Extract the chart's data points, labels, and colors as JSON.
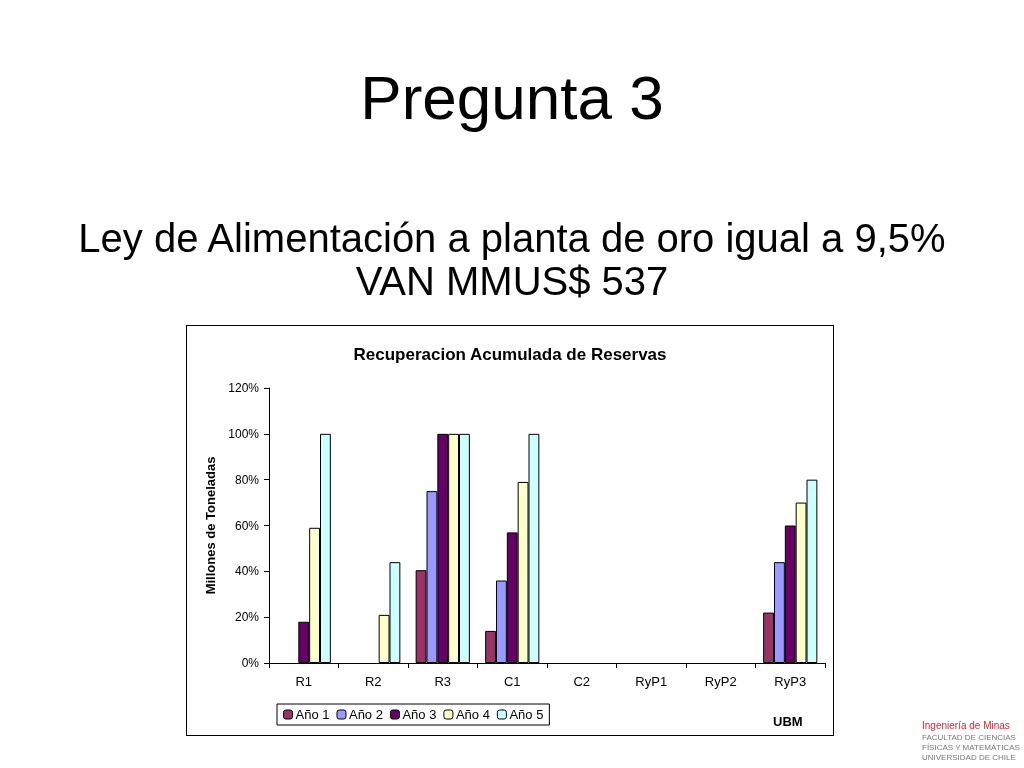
{
  "chart_data": {
    "type": "bar",
    "title": "Pregunta 3",
    "subtitle": "Ley de Alimentación a planta de oro igual a 9,5%\nVAN MMUS$ 537",
    "ylabel": "Millones de Toneladas",
    "annotations": [
      "Recuperacion Acumulada de Reservas",
      "UBM",
      "Ingeniería de Minas",
      "FACULTAD DE CIENCIAS\nFÍSICAS Y MATEMÁTICAS\nUNIVERSIDAD DE CHILE"
    ],
    "categories": [
      "R1",
      "R2",
      "R3",
      "C1",
      "C2",
      "RyP1",
      "RyP2",
      "RyP3"
    ],
    "series": [
      {
        "name": "Año 1",
        "color": "#993366",
        "values": [
          null,
          null,
          40.5,
          14,
          null,
          null,
          null,
          22
        ]
      },
      {
        "name": "Año 2",
        "color": "#9999ff",
        "values": [
          null,
          null,
          75,
          36,
          null,
          null,
          null,
          44
        ]
      },
      {
        "name": "Año 3",
        "color": "#660066",
        "values": [
          18,
          null,
          100,
          57,
          null,
          null,
          null,
          60
        ]
      },
      {
        "name": "Año 4",
        "color": "#ffffcc",
        "values": [
          59,
          21,
          100,
          79,
          null,
          null,
          null,
          70
        ]
      },
      {
        "name": "Año 5",
        "color": "#ccffff",
        "values": [
          100,
          44,
          100,
          100,
          null,
          null,
          null,
          80
        ]
      }
    ],
    "ylim": [
      0,
      120
    ],
    "yticks": [
      {
        "value": 0,
        "label": "0%"
      },
      {
        "value": 20,
        "label": "20%"
      },
      {
        "value": 40,
        "label": "40%"
      },
      {
        "value": 60,
        "label": "60%"
      },
      {
        "value": 80,
        "label": "80%"
      },
      {
        "value": 100,
        "label": "100%"
      },
      {
        "value": 120,
        "label": "120%"
      }
    ],
    "grid": false,
    "legend": "bottom left"
  }
}
